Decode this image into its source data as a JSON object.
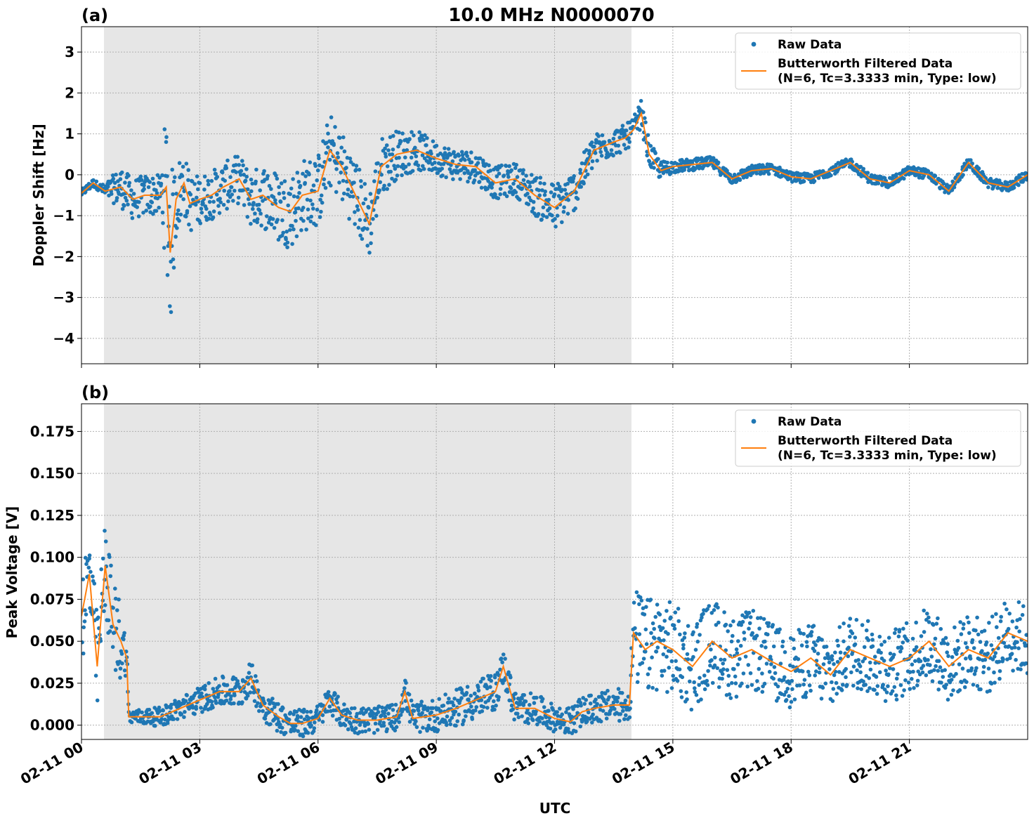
{
  "chart_data": {
    "title": "10.0 MHz N0000070",
    "xlabel": "UTC",
    "x_ticks": [
      "02-11 00",
      "02-11 03",
      "02-11 06",
      "02-11 09",
      "02-11 12",
      "02-11 15",
      "02-11 18",
      "02-11 21"
    ],
    "x_tick_hours": [
      0,
      3,
      6,
      9,
      12,
      15,
      18,
      21
    ],
    "xlim_hours": [
      0,
      24
    ],
    "shaded_interval_hours": [
      0.57,
      13.95
    ],
    "colors": {
      "raw": "#1f77b4",
      "filtered": "#ff7f0e",
      "shade": "#e6e6e6",
      "grid": "#b0b0b0"
    },
    "legend": {
      "raw": "Raw Data",
      "filtered_line1": "Butterworth Filtered Data",
      "filtered_line2": "(N=6, Tc=3.3333 min, Type: low)",
      "placement": "top-right"
    },
    "panels": [
      {
        "label": "(a)",
        "type": "scatter+line",
        "ylabel": "Doppler Shift [Hz]",
        "ylim": [
          -4.62,
          3.62
        ],
        "y_ticks": [
          3,
          2,
          1,
          0,
          -1,
          -2,
          -3,
          -4
        ],
        "y_tick_labels": [
          "3",
          "2",
          "1",
          "0",
          "−1",
          "−2",
          "−3",
          "−4"
        ],
        "filtered": {
          "x": [
            0,
            0.3,
            0.6,
            1.0,
            1.3,
            1.6,
            2.0,
            2.15,
            2.25,
            2.4,
            2.6,
            2.75,
            3.0,
            3.3,
            3.6,
            4.0,
            4.3,
            4.6,
            5.0,
            5.3,
            5.6,
            6.0,
            6.3,
            6.6,
            7.0,
            7.3,
            7.6,
            8.0,
            8.5,
            9.0,
            9.5,
            10.0,
            10.5,
            11.0,
            11.5,
            12.0,
            12.5,
            13.0,
            13.5,
            13.8,
            14.0,
            14.2,
            14.4,
            14.7,
            15.0,
            15.5,
            16.0,
            16.5,
            17.0,
            17.5,
            18.0,
            18.5,
            19.0,
            19.5,
            20.0,
            20.5,
            21.0,
            21.5,
            22.0,
            22.5,
            23.0,
            23.5,
            24.0
          ],
          "y": [
            -0.45,
            -0.2,
            -0.4,
            -0.3,
            -0.6,
            -0.5,
            -0.5,
            -0.3,
            -1.9,
            -0.6,
            -0.2,
            -0.7,
            -0.6,
            -0.5,
            -0.3,
            -0.1,
            -0.6,
            -0.5,
            -0.8,
            -0.9,
            -0.5,
            -0.4,
            0.6,
            0.2,
            -0.6,
            -1.2,
            0.2,
            0.5,
            0.6,
            0.4,
            0.25,
            0.2,
            -0.2,
            -0.1,
            -0.5,
            -0.8,
            -0.4,
            0.6,
            0.8,
            0.9,
            1.1,
            1.5,
            0.5,
            0.1,
            0.2,
            0.25,
            0.3,
            -0.1,
            0.1,
            0.15,
            -0.05,
            -0.1,
            0.1,
            0.3,
            -0.1,
            -0.2,
            0.1,
            0.0,
            -0.4,
            0.3,
            -0.2,
            -0.3,
            0.0
          ]
        },
        "raw_spread": {
          "x": [
            0,
            0.5,
            1.0,
            2.0,
            2.2,
            2.4,
            3.0,
            4.0,
            5.0,
            6.0,
            7.0,
            8.0,
            9.0,
            10.0,
            11.0,
            12.0,
            13.0,
            14.0,
            14.3,
            15.0,
            18.0,
            21.0,
            24.0
          ],
          "halfwidth": [
            0.1,
            0.1,
            0.5,
            0.5,
            2.4,
            0.9,
            0.6,
            0.6,
            0.9,
            0.9,
            0.9,
            0.6,
            0.4,
            0.4,
            0.4,
            0.6,
            0.4,
            0.3,
            0.35,
            0.15,
            0.12,
            0.12,
            0.12
          ]
        }
      },
      {
        "label": "(b)",
        "type": "scatter+line",
        "ylabel": "Peak Voltage [V]",
        "ylim": [
          -0.0085,
          0.1915
        ],
        "y_ticks": [
          0.175,
          0.15,
          0.125,
          0.1,
          0.075,
          0.05,
          0.025,
          0.0
        ],
        "y_tick_labels": [
          "0.175",
          "0.150",
          "0.125",
          "0.100",
          "0.075",
          "0.050",
          "0.025",
          "0.000"
        ],
        "filtered": {
          "x": [
            0,
            0.2,
            0.4,
            0.6,
            0.8,
            1.0,
            1.15,
            1.2,
            1.5,
            2.0,
            2.5,
            3.0,
            3.5,
            4.0,
            4.3,
            4.6,
            5.0,
            5.3,
            5.6,
            6.0,
            6.3,
            6.6,
            7.0,
            7.5,
            8.0,
            8.2,
            8.4,
            9.0,
            9.5,
            10.0,
            10.5,
            10.7,
            11.0,
            11.5,
            12.0,
            12.4,
            12.7,
            13.0,
            13.5,
            13.9,
            14.0,
            14.3,
            14.6,
            15.0,
            15.5,
            16.0,
            16.5,
            17.0,
            17.5,
            18.0,
            18.5,
            19.0,
            19.5,
            20.0,
            20.5,
            21.0,
            21.5,
            22.0,
            22.5,
            23.0,
            23.5,
            24.0
          ],
          "y": [
            0.065,
            0.09,
            0.035,
            0.095,
            0.06,
            0.05,
            0.04,
            0.005,
            0.005,
            0.005,
            0.01,
            0.015,
            0.02,
            0.02,
            0.028,
            0.012,
            0.005,
            0.001,
            0.001,
            0.004,
            0.016,
            0.006,
            0.003,
            0.003,
            0.005,
            0.02,
            0.004,
            0.006,
            0.01,
            0.015,
            0.02,
            0.035,
            0.01,
            0.01,
            0.004,
            0.002,
            0.008,
            0.01,
            0.012,
            0.012,
            0.055,
            0.045,
            0.05,
            0.045,
            0.035,
            0.05,
            0.04,
            0.045,
            0.038,
            0.032,
            0.04,
            0.03,
            0.045,
            0.04,
            0.035,
            0.04,
            0.05,
            0.035,
            0.045,
            0.04,
            0.055,
            0.05
          ]
        },
        "raw_spread": {
          "x": [
            0,
            0.5,
            1.0,
            1.2,
            4.0,
            6.0,
            8.0,
            10.0,
            12.0,
            13.9,
            14.1,
            15.0,
            18.0,
            21.0,
            24.0
          ],
          "halfwidth": [
            0.03,
            0.03,
            0.025,
            0.004,
            0.01,
            0.008,
            0.008,
            0.012,
            0.008,
            0.01,
            0.03,
            0.028,
            0.022,
            0.022,
            0.022
          ]
        }
      }
    ]
  }
}
